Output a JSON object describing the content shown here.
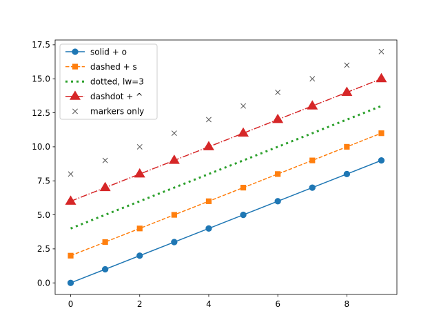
{
  "chart_data": {
    "type": "line",
    "title": "",
    "xlabel": "",
    "ylabel": "",
    "xlim": [
      -0.45,
      9.45
    ],
    "ylim": [
      -0.85,
      17.85
    ],
    "xticks": [
      0,
      2,
      4,
      6,
      8
    ],
    "xtick_labels": [
      "0",
      "2",
      "4",
      "6",
      "8"
    ],
    "yticks": [
      0,
      2.5,
      5,
      7.5,
      10,
      12.5,
      15,
      17.5
    ],
    "ytick_labels": [
      "0.0",
      "2.5",
      "5.0",
      "7.5",
      "10.0",
      "12.5",
      "15.0",
      "17.5"
    ],
    "grid": false,
    "legend_position": "top-left",
    "x": [
      0,
      1,
      2,
      3,
      4,
      5,
      6,
      7,
      8,
      9
    ],
    "series": [
      {
        "name": "solid + o",
        "values": [
          0,
          1,
          2,
          3,
          4,
          5,
          6,
          7,
          8,
          9
        ],
        "color": "#1f77b4",
        "linestyle": "solid",
        "marker": "circle",
        "linewidth": 1.5
      },
      {
        "name": "dashed + s",
        "values": [
          2,
          3,
          4,
          5,
          6,
          7,
          8,
          9,
          10,
          11
        ],
        "color": "#ff7f0e",
        "linestyle": "dashed",
        "marker": "square",
        "linewidth": 1.5
      },
      {
        "name": "dotted, lw=3",
        "values": [
          4,
          5,
          6,
          7,
          8,
          9,
          10,
          11,
          12,
          13
        ],
        "color": "#2ca02c",
        "linestyle": "dotted",
        "marker": "none",
        "linewidth": 3
      },
      {
        "name": "dashdot + ^",
        "values": [
          6,
          7,
          8,
          9,
          10,
          11,
          12,
          13,
          14,
          15
        ],
        "color": "#d62728",
        "linestyle": "dashdot",
        "marker": "triangle-up",
        "linewidth": 1.5
      },
      {
        "name": "markers only",
        "values": [
          8,
          9,
          10,
          11,
          12,
          13,
          14,
          15,
          16,
          17
        ],
        "color": "#555555",
        "linestyle": "none",
        "marker": "x",
        "linewidth": 0
      }
    ]
  }
}
